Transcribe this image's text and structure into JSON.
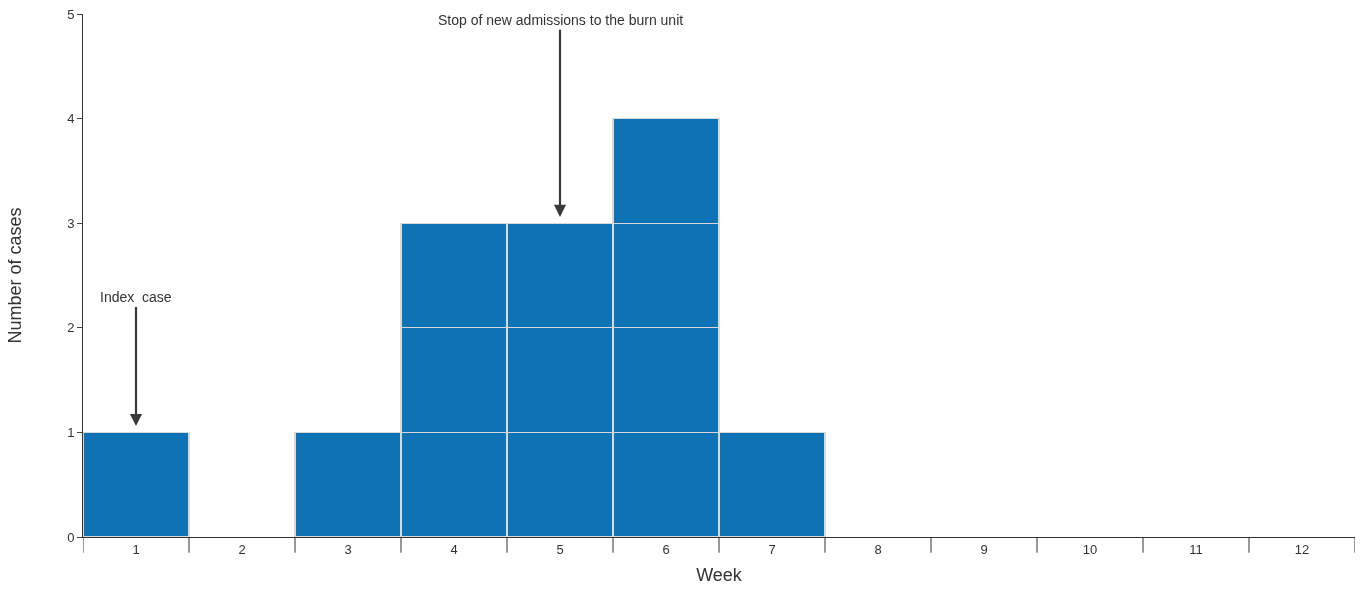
{
  "chart_data": {
    "type": "bar",
    "stacked": true,
    "xlabel": "Week",
    "ylabel": "Number of cases",
    "categories": [
      "1",
      "2",
      "3",
      "4",
      "5",
      "6",
      "7",
      "8",
      "9",
      "10",
      "11",
      "12"
    ],
    "series": [
      {
        "color": "#0e72b5",
        "values": [
          1,
          null,
          1,
          1,
          1,
          1,
          1,
          null,
          null,
          null,
          null,
          null
        ]
      },
      {
        "color": "#0e72b5",
        "values": [
          null,
          null,
          null,
          1,
          1,
          1,
          null,
          null,
          null,
          null,
          null,
          null
        ]
      },
      {
        "color": "#0e72b5",
        "values": [
          null,
          null,
          null,
          1,
          1,
          1,
          null,
          null,
          null,
          null,
          null,
          null
        ]
      },
      {
        "color": "#0e72b5",
        "values": [
          null,
          null,
          null,
          null,
          null,
          1,
          null,
          null,
          null,
          null,
          null,
          null
        ]
      }
    ],
    "ylim": [
      0,
      5
    ],
    "yticks": [
      0,
      1,
      2,
      3,
      4,
      5
    ],
    "grid": false,
    "annotations": [
      {
        "text": "Index  case",
        "x": "1",
        "y": 1
      },
      {
        "text": "Stop of new admissions to the burn unit",
        "x": "5",
        "y": 3
      }
    ]
  }
}
